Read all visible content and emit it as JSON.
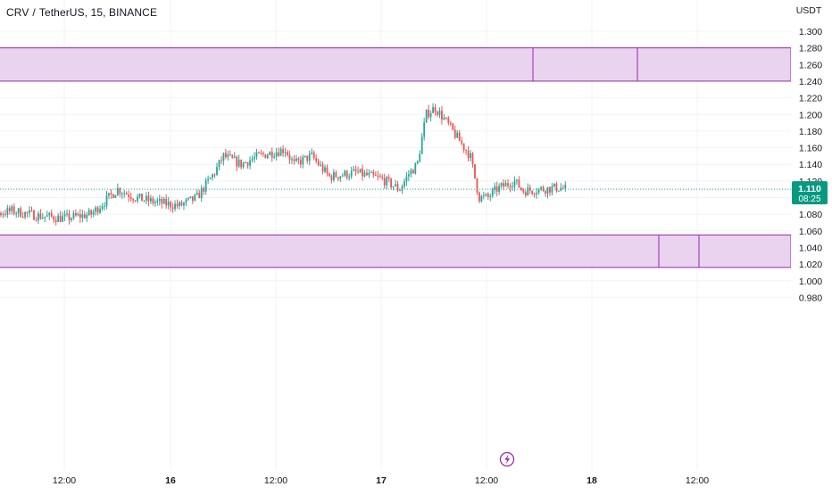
{
  "header": {
    "symbol": "CRV",
    "quote": "TetherUS",
    "interval": "15",
    "exchange": "BINANCE"
  },
  "price_axis": {
    "currency": "USDT",
    "last_price": "1.110",
    "countdown": "08:25"
  },
  "colors": {
    "up": "#26a69a",
    "down": "#ef5350",
    "zone_fill": "#e9d3ef",
    "zone_border": "#9c27b0",
    "last_price_bg": "#089981",
    "last_price_line": "#26a69a",
    "axis_text": "#131722"
  },
  "icons": {
    "event_marker": "lightning-icon"
  },
  "chart_data": {
    "type": "candlestick",
    "title": "CRV / TetherUS, 15, BINANCE",
    "ylim": [
      0.97,
      1.31
    ],
    "y_ticks": [
      0.98,
      1.0,
      1.02,
      1.04,
      1.06,
      1.08,
      1.1,
      1.12,
      1.14,
      1.16,
      1.18,
      1.2,
      1.22,
      1.24,
      1.26,
      1.28,
      1.3
    ],
    "x_tick_labels": [
      "12:00",
      "16",
      "12:00",
      "17",
      "12:00",
      "18",
      "12:00"
    ],
    "grid": true,
    "last_price": 1.11,
    "zones": [
      {
        "top": 1.28,
        "bottom": 1.24,
        "dividers": [
          "Jul 17 ~21:00",
          "Jul 18 ~09:00"
        ]
      },
      {
        "top": 1.055,
        "bottom": 1.016,
        "dividers": [
          "Jul 18 ~08:00",
          "Jul 18 ~12:30"
        ]
      }
    ],
    "close_path": [
      [
        "15 00:00",
        1.07
      ],
      [
        "15 03:00",
        1.078
      ],
      [
        "15 06:00",
        1.084
      ],
      [
        "15 09:00",
        1.078
      ],
      [
        "15 12:00",
        1.075
      ],
      [
        "15 15:00",
        1.08
      ],
      [
        "15 18:00",
        1.11
      ],
      [
        "15 20:00",
        1.1
      ],
      [
        "15 22:00",
        1.095
      ],
      [
        "16 01:00",
        1.09
      ],
      [
        "16 03:00",
        1.1
      ],
      [
        "16 05:00",
        1.13
      ],
      [
        "16 06:00",
        1.15
      ],
      [
        "16 08:00",
        1.14
      ],
      [
        "16 10:00",
        1.15
      ],
      [
        "16 13:00",
        1.158
      ],
      [
        "16 14:00",
        1.14
      ],
      [
        "16 16:00",
        1.15
      ],
      [
        "16 18:00",
        1.125
      ],
      [
        "16 21:00",
        1.13
      ],
      [
        "17 00:00",
        1.122
      ],
      [
        "17 02:00",
        1.11
      ],
      [
        "17 03:00",
        1.128
      ],
      [
        "17 04:00",
        1.14
      ],
      [
        "17 05:00",
        1.2
      ],
      [
        "17 06:00",
        1.208
      ],
      [
        "17 07:00",
        1.195
      ],
      [
        "17 08:00",
        1.18
      ],
      [
        "17 09:00",
        1.165
      ],
      [
        "17 10:00",
        1.15
      ],
      [
        "17 11:00",
        1.1
      ],
      [
        "17 12:00",
        1.1
      ],
      [
        "17 13:00",
        1.11
      ],
      [
        "17 15:00",
        1.12
      ],
      [
        "17 16:00",
        1.108
      ],
      [
        "17 18:00",
        1.11
      ],
      [
        "17 20:00",
        1.112
      ],
      [
        "17 21:00",
        1.11
      ]
    ]
  }
}
